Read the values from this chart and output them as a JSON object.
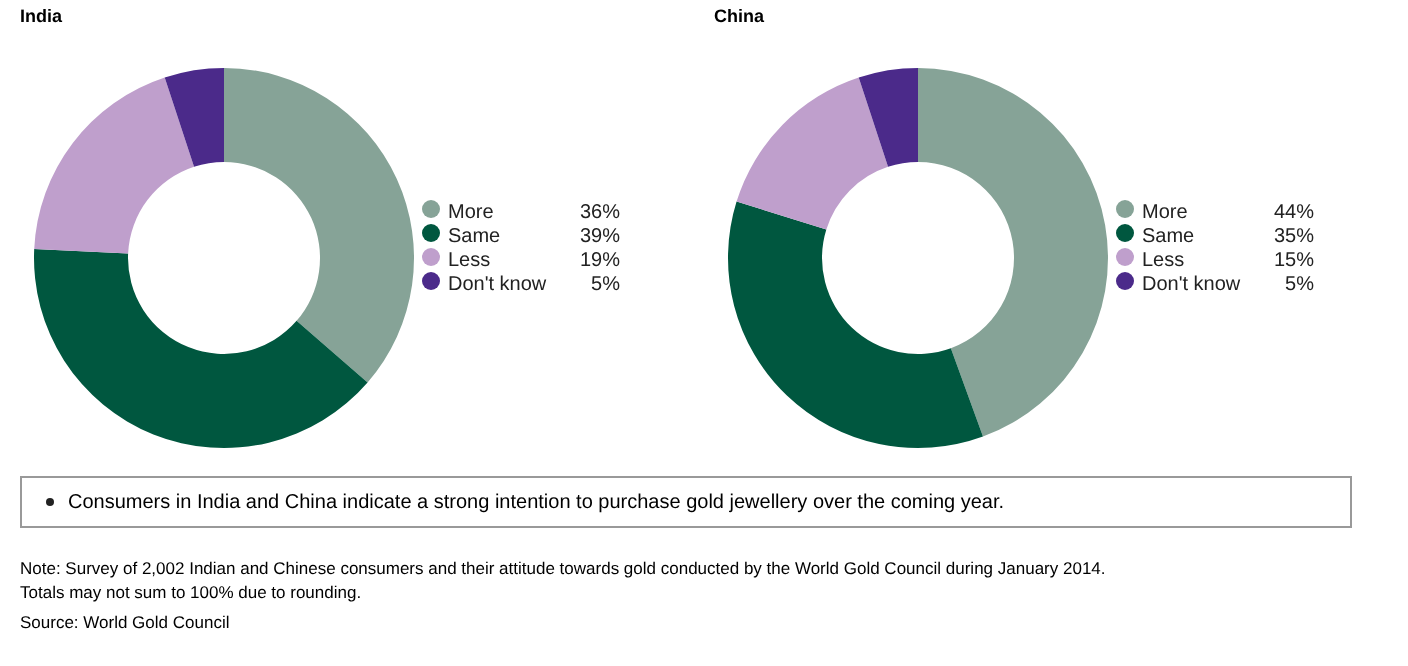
{
  "chart_data": [
    {
      "type": "donut",
      "title": "India",
      "categories": [
        "More",
        "Same",
        "Less",
        "Don't know"
      ],
      "values": [
        36,
        39,
        19,
        5
      ],
      "value_labels": [
        "36%",
        "39%",
        "19%",
        "5%"
      ],
      "colors": [
        "#86a397",
        "#00573f",
        "#bf9fcc",
        "#4b2a8a"
      ],
      "legend": "right"
    },
    {
      "type": "donut",
      "title": "China",
      "categories": [
        "More",
        "Same",
        "Less",
        "Don't know"
      ],
      "values": [
        44,
        35,
        15,
        5
      ],
      "value_labels": [
        "44%",
        "35%",
        "15%",
        "5%"
      ],
      "colors": [
        "#86a397",
        "#00573f",
        "#bf9fcc",
        "#4b2a8a"
      ],
      "legend": "right",
      "annotations": [
        "Consumers in India and China indicate a strong intention to purchase gold jewellery over the coming year.",
        "Note: Survey of 2,002 Indian and Chinese consumers and their attitude towards gold conducted by the World Gold Council during January 2014.",
        "Totals may not sum to 100% due to rounding.",
        "Source: World Gold Council"
      ]
    }
  ]
}
